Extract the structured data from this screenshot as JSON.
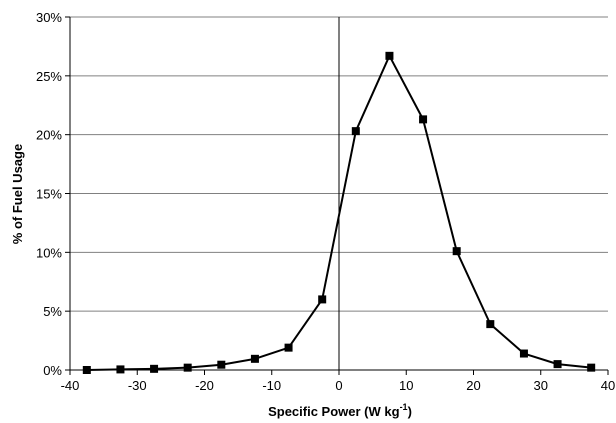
{
  "chart_data": {
    "type": "line",
    "title": "",
    "xlabel": "Specific Power (W kg",
    "xlabel_sup": "-1",
    "xlabel_end": ")",
    "ylabel": "% of Fuel Usage",
    "xlim": [
      -40,
      40
    ],
    "ylim": [
      0,
      30
    ],
    "x_ticks": [
      -40,
      -30,
      -20,
      -10,
      0,
      10,
      20,
      30,
      40
    ],
    "x_tick_labels": [
      "-40",
      "-30",
      "-20",
      "-10",
      "0",
      "10",
      "20",
      "30",
      "40"
    ],
    "y_ticks": [
      0,
      5,
      10,
      15,
      20,
      25,
      30
    ],
    "y_tick_labels": [
      "0%",
      "5%",
      "10%",
      "15%",
      "20%",
      "25%",
      "30%"
    ],
    "grid": "horizontal",
    "marker": "square",
    "series": [
      {
        "x": [
          -37.5,
          -32.5,
          -27.5,
          -22.5,
          -17.5,
          -12.5,
          -7.5,
          -2.5,
          2.5,
          7.5,
          12.5,
          17.5,
          22.5,
          27.5,
          32.5,
          37.5
        ],
        "y": [
          0.0,
          0.05,
          0.1,
          0.2,
          0.45,
          0.95,
          1.9,
          6.0,
          20.3,
          26.7,
          21.3,
          10.1,
          3.9,
          1.4,
          0.5,
          0.2
        ]
      }
    ],
    "colors": {
      "line": "#000000",
      "marker": "#000000",
      "grid": "#808080",
      "axis": "#000000",
      "zero_line": "#000000"
    }
  }
}
